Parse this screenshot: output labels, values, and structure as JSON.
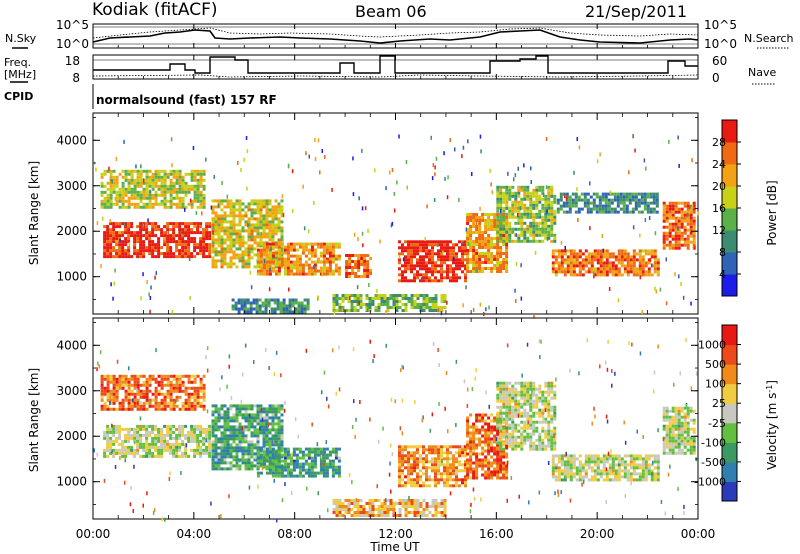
{
  "header": {
    "station": "Kodiak (fitACF)",
    "beam": "Beam 06",
    "date": "21/Sep/2011"
  },
  "summary": {
    "nsky_label": "N.Sky",
    "nsearch_label": "N.Search",
    "freq_label_line1": "Freq.",
    "freq_label_line2": "[MHz]",
    "nave_label": "Nave",
    "cpid_label": "CPID",
    "cpid_value": "normalsound (fast) 157 RF",
    "noise_ticks_left": [
      "10^5",
      "10^0"
    ],
    "noise_ticks_right": [
      "10^5",
      "10^0"
    ],
    "freq_ticks": [
      "18",
      "8"
    ],
    "nave_ticks": [
      "60",
      "0"
    ]
  },
  "chart_data": [
    {
      "type": "heatmap",
      "name": "power-panel",
      "ylabel": "Slant Range [km]",
      "y_ticks": [
        "1000",
        "2000",
        "3000",
        "4000"
      ],
      "ylim": [
        180,
        4600
      ],
      "colorbar_label": "Power [dB]",
      "colorbar_ticks": [
        "4",
        "8",
        "12",
        "16",
        "20",
        "24",
        "28"
      ],
      "colorbar_colors": [
        "#1c1ce8",
        "#2e63b8",
        "#3b8c70",
        "#5cb04a",
        "#c8d018",
        "#f3a214",
        "#ef6a12",
        "#e81a12"
      ],
      "regions": [
        {
          "t": [
            0.4,
            4.6
          ],
          "r": [
            1450,
            2200
          ],
          "level": 0.92
        },
        {
          "t": [
            0.3,
            4.4
          ],
          "r": [
            2550,
            3350
          ],
          "level": 0.55
        },
        {
          "t": [
            4.7,
            7.5
          ],
          "r": [
            1200,
            2700
          ],
          "level": 0.6
        },
        {
          "t": [
            6.5,
            9.8
          ],
          "r": [
            1050,
            1750
          ],
          "level": 0.75
        },
        {
          "t": [
            10.0,
            11.0
          ],
          "r": [
            1000,
            1500
          ],
          "level": 0.8
        },
        {
          "t": [
            12.1,
            14.8
          ],
          "r": [
            900,
            1800
          ],
          "level": 0.93
        },
        {
          "t": [
            14.8,
            16.4
          ],
          "r": [
            1100,
            2400
          ],
          "level": 0.72
        },
        {
          "t": [
            16.0,
            18.3
          ],
          "r": [
            1800,
            3000
          ],
          "level": 0.5
        },
        {
          "t": [
            18.2,
            22.4
          ],
          "r": [
            1050,
            1600
          ],
          "level": 0.78
        },
        {
          "t": [
            18.4,
            22.4
          ],
          "r": [
            2450,
            2850
          ],
          "level": 0.3
        },
        {
          "t": [
            22.6,
            23.9
          ],
          "r": [
            1650,
            2650
          ],
          "level": 0.82
        },
        {
          "t": [
            5.5,
            8.5
          ],
          "r": [
            250,
            520
          ],
          "level": 0.3
        },
        {
          "t": [
            9.5,
            14.0
          ],
          "r": [
            230,
            620
          ],
          "level": 0.45
        }
      ]
    },
    {
      "type": "heatmap",
      "name": "velocity-panel",
      "ylabel": "Slant Range [km]",
      "xlabel": "Time UT",
      "x_ticks": [
        "00:00",
        "04:00",
        "08:00",
        "12:00",
        "16:00",
        "20:00",
        "00:00"
      ],
      "y_ticks": [
        "1000",
        "2000",
        "3000",
        "4000"
      ],
      "ylim": [
        180,
        4600
      ],
      "colorbar_label": "Velocity [m s^-1]",
      "colorbar_ticks": [
        "1000",
        "500",
        "100",
        "25",
        "-25",
        "-100",
        "-500",
        "-1000"
      ],
      "colorbar_colors": [
        "#2a3ab8",
        "#2f7fb0",
        "#3b9a62",
        "#62c040",
        "#c8c8c0",
        "#f0cc40",
        "#f08a18",
        "#ec4a18",
        "#e81812"
      ],
      "regions": [
        {
          "t": [
            0.4,
            4.6
          ],
          "r": [
            1550,
            2250
          ],
          "level": 0.5
        },
        {
          "t": [
            0.3,
            4.4
          ],
          "r": [
            2600,
            3350
          ],
          "level": 0.78
        },
        {
          "t": [
            4.7,
            7.5
          ],
          "r": [
            1250,
            2700
          ],
          "level": 0.3
        },
        {
          "t": [
            6.5,
            9.8
          ],
          "r": [
            1100,
            1750
          ],
          "level": 0.28
        },
        {
          "t": [
            12.1,
            14.8
          ],
          "r": [
            900,
            1800
          ],
          "level": 0.72
        },
        {
          "t": [
            14.8,
            16.4
          ],
          "r": [
            1100,
            2500
          ],
          "level": 0.8
        },
        {
          "t": [
            16.0,
            18.3
          ],
          "r": [
            1700,
            3200
          ],
          "level": 0.5
        },
        {
          "t": [
            18.2,
            22.4
          ],
          "r": [
            1050,
            1600
          ],
          "level": 0.5
        },
        {
          "t": [
            22.6,
            23.9
          ],
          "r": [
            1650,
            2650
          ],
          "level": 0.5
        },
        {
          "t": [
            9.5,
            14.0
          ],
          "r": [
            230,
            620
          ],
          "level": 0.65
        }
      ]
    }
  ]
}
